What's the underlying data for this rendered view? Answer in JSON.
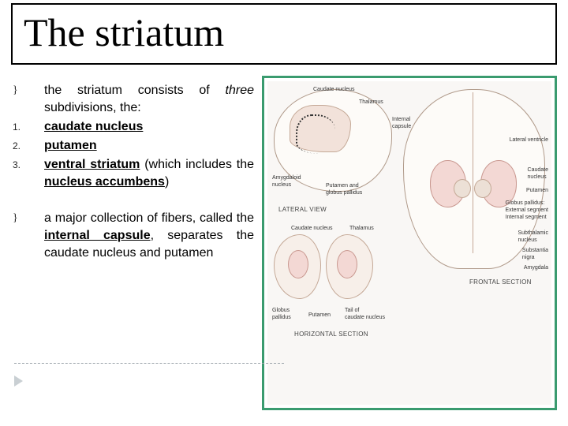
{
  "title": "The striatum",
  "bullets": [
    {
      "marker": "}",
      "type": "script",
      "html": "the striatum consists of <span class='i'>three</span> subdivisions, the:"
    },
    {
      "marker": "1.",
      "type": "num",
      "html": "<span class='b u'>caudate nucleus</span>"
    },
    {
      "marker": "2.",
      "type": "num",
      "html": "<span class='b u'>putamen</span>"
    },
    {
      "marker": "3.",
      "type": "num",
      "html": "<span class='b u'>ventral striatum</span> (which includes the <span class='b u'>nucleus accumbens</span>)"
    },
    {
      "marker": "",
      "type": "gap",
      "html": ""
    },
    {
      "marker": "}",
      "type": "script",
      "html": "a major collection of fibers, called the <span class='b u'>internal capsule</span>, separates the caudate nucleus and putamen"
    }
  ],
  "figure": {
    "border_color": "#3a9b6f",
    "panel_labels": {
      "lateral": "LATERAL VIEW",
      "frontal": "FRONTAL SECTION",
      "horizontal": "HORIZONTAL SECTION"
    },
    "anatomy_labels": {
      "caudate_nucleus_top": "Caudate nucleus",
      "thalamus_top": "Thalamus",
      "internal_capsule": "Internal\ncapsule",
      "lateral_ventricle": "Lateral ventricle",
      "amygdaloid": "Amygdaloid\nnucleus",
      "putamen_gp": "Putamen and\nglobus pallidus",
      "caudate_nucleus_r": "Caudate\nnucleus",
      "putamen_r": "Putamen",
      "globus_pallidus": "Globus pallidus:\nExternal segment\nInternal segment",
      "subthalamic": "Subthalamic\nnucleus",
      "substantia_nigra": "Substantia\nnigra",
      "amygdala_r": "Amygdala",
      "caudate_nucleus_bl": "Caudate nucleus",
      "thalamus_bl": "Thalamus",
      "globus_pallidus_bl": "Globus\npallidus",
      "putamen_bl": "Putamen",
      "tail": "Tail of\ncaudate nucleus"
    }
  }
}
